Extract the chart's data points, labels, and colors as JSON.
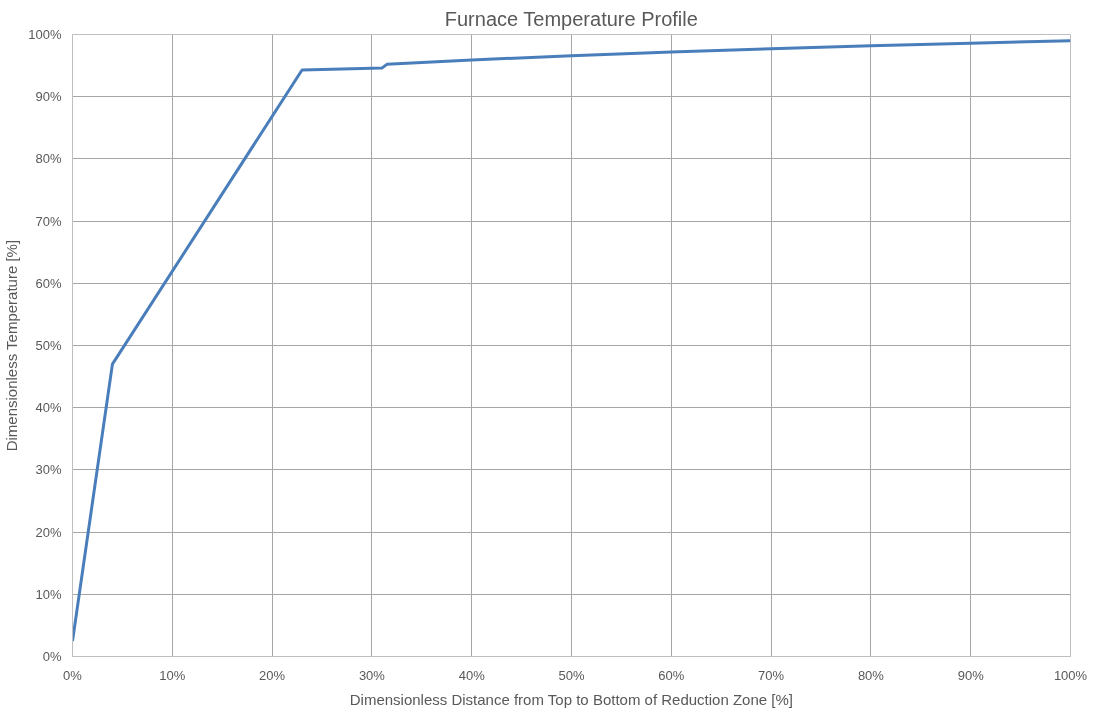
{
  "chart_data": {
    "type": "line",
    "title": "Furnace Temperature Profile",
    "xlabel": "Dimensionless Distance from Top to Bottom of Reduction Zone [%]",
    "ylabel": "Dimensionless Temperature [%]",
    "x": [
      0,
      4,
      23,
      31,
      31.5,
      40,
      50,
      60,
      70,
      80,
      90,
      100
    ],
    "series": [
      {
        "color": "#4a7ebb",
        "values": [
          2.5,
          47,
          94.3,
          94.6,
          95.2,
          95.9,
          96.6,
          97.2,
          97.7,
          98.2,
          98.6,
          99
        ]
      }
    ],
    "xlim": [
      0,
      100
    ],
    "ylim": [
      0,
      100
    ],
    "xticks": [
      {
        "value": 0,
        "label": "0%"
      },
      {
        "value": 10,
        "label": "10%"
      },
      {
        "value": 20,
        "label": "20%"
      },
      {
        "value": 30,
        "label": "30%"
      },
      {
        "value": 40,
        "label": "40%"
      },
      {
        "value": 50,
        "label": "50%"
      },
      {
        "value": 60,
        "label": "60%"
      },
      {
        "value": 70,
        "label": "70%"
      },
      {
        "value": 80,
        "label": "80%"
      },
      {
        "value": 90,
        "label": "90%"
      },
      {
        "value": 100,
        "label": "100%"
      }
    ],
    "yticks": [
      {
        "value": 0,
        "label": "0%"
      },
      {
        "value": 10,
        "label": "10%"
      },
      {
        "value": 20,
        "label": "20%"
      },
      {
        "value": 30,
        "label": "30%"
      },
      {
        "value": 40,
        "label": "40%"
      },
      {
        "value": 50,
        "label": "50%"
      },
      {
        "value": 60,
        "label": "60%"
      },
      {
        "value": 70,
        "label": "70%"
      },
      {
        "value": 80,
        "label": "80%"
      },
      {
        "value": 90,
        "label": "90%"
      },
      {
        "value": 100,
        "label": "100%"
      }
    ],
    "grid": true,
    "marker": "none",
    "line_style": "solid"
  }
}
